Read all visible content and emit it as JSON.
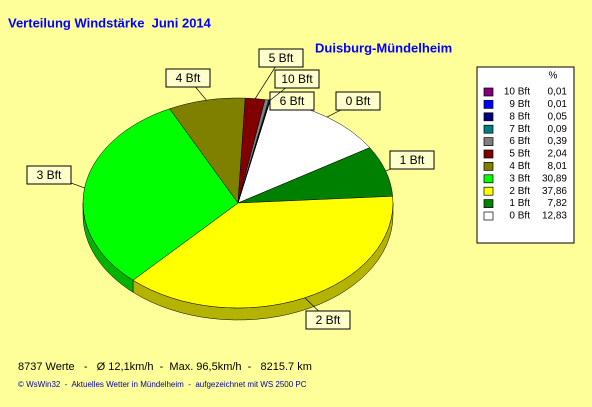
{
  "chart_data": {
    "type": "pie",
    "title": "Verteilung Windstärke  Juni 2014",
    "subtitle": "Duisburg-Mündelheim",
    "legend_title": "%",
    "categories": [
      "0 Bft",
      "1 Bft",
      "2 Bft",
      "3 Bft",
      "4 Bft",
      "5 Bft",
      "6 Bft",
      "7 Bft",
      "8 Bft",
      "9 Bft",
      "10 Bft"
    ],
    "values": [
      12.83,
      7.82,
      37.86,
      30.89,
      8.01,
      2.04,
      0.39,
      0.09,
      0.05,
      0.01,
      0.01
    ],
    "value_labels": [
      "12,83",
      "7,82",
      "37,86",
      "30,89",
      "8,01",
      "2,04",
      "0,39",
      "0,09",
      "0,05",
      "0,01",
      "0,01"
    ],
    "colors": [
      "#ffffff",
      "#008000",
      "#ffff00",
      "#00ff00",
      "#808000",
      "#800000",
      "#808080",
      "#008080",
      "#000080",
      "#0000ff",
      "#800080"
    ],
    "footer": "8737 Werte   -   Ø 12,1km/h  -  Max. 96,5km/h  -   8215.7 km",
    "credits": "© WsWin32  -  Aktuelles Wetter in Mündelheim  -  aufgezeichnet mit WS 2500 PC"
  }
}
